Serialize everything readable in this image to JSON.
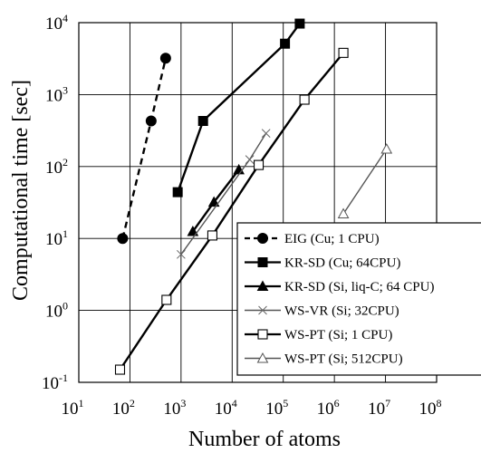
{
  "chart_data": {
    "type": "line",
    "title": "",
    "xlabel": "Number of atoms",
    "ylabel": "Computational time [sec]",
    "xscale": "log",
    "yscale": "log",
    "xlim": [
      10,
      100000000
    ],
    "ylim": [
      0.1,
      10000
    ],
    "grid": true,
    "legend_position": "lower-right",
    "x_ticks": [
      {
        "value": 10,
        "base": "10",
        "exp": "1"
      },
      {
        "value": 100,
        "base": "10",
        "exp": "2"
      },
      {
        "value": 1000,
        "base": "10",
        "exp": "3"
      },
      {
        "value": 10000,
        "base": "10",
        "exp": "4"
      },
      {
        "value": 100000,
        "base": "10",
        "exp": "5"
      },
      {
        "value": 1000000,
        "base": "10",
        "exp": "6"
      },
      {
        "value": 10000000,
        "base": "10",
        "exp": "7"
      },
      {
        "value": 100000000,
        "base": "10",
        "exp": "8"
      }
    ],
    "y_ticks": [
      {
        "value": 0.1,
        "base": "10",
        "exp": "-1"
      },
      {
        "value": 1,
        "base": "10",
        "exp": "0"
      },
      {
        "value": 10,
        "base": "10",
        "exp": "1"
      },
      {
        "value": 100,
        "base": "10",
        "exp": "2"
      },
      {
        "value": 1000,
        "base": "10",
        "exp": "3"
      },
      {
        "value": 10000,
        "base": "10",
        "exp": "4"
      }
    ],
    "series": [
      {
        "name": "EIG (Cu; 1 CPU)",
        "marker": "circle-filled",
        "line": "dashed",
        "points": [
          [
            72,
            10
          ],
          [
            260,
            430
          ],
          [
            500,
            3200
          ]
        ]
      },
      {
        "name": "KR-SD (Cu; 64CPU)",
        "marker": "square-filled",
        "line": "solid",
        "points": [
          [
            860,
            44
          ],
          [
            2700,
            430
          ],
          [
            108000,
            5100
          ],
          [
            210000,
            9700
          ]
        ]
      },
      {
        "name": "KR-SD (Si, liq-C; 64 CPU)",
        "marker": "triangle-filled",
        "line": "solid",
        "points": [
          [
            1700,
            12.5
          ],
          [
            4400,
            32
          ],
          [
            13500,
            90
          ]
        ]
      },
      {
        "name": "WS-VR (Si; 32CPU)",
        "marker": "x",
        "line": "solid",
        "points": [
          [
            1000,
            6
          ],
          [
            22000,
            125
          ],
          [
            46000,
            290
          ]
        ]
      },
      {
        "name": "WS-PT (Si; 1 CPU)",
        "marker": "square-open",
        "line": "solid",
        "points": [
          [
            64,
            0.15
          ],
          [
            520,
            1.4
          ],
          [
            4100,
            11
          ],
          [
            33000,
            105
          ],
          [
            260000,
            850
          ],
          [
            1500000,
            3800
          ]
        ]
      },
      {
        "name": "WS-PT (Si; 512CPU)",
        "marker": "triangle-open",
        "line": "solid",
        "points": [
          [
            1500000,
            22
          ],
          [
            10500000,
            175
          ]
        ]
      }
    ]
  }
}
